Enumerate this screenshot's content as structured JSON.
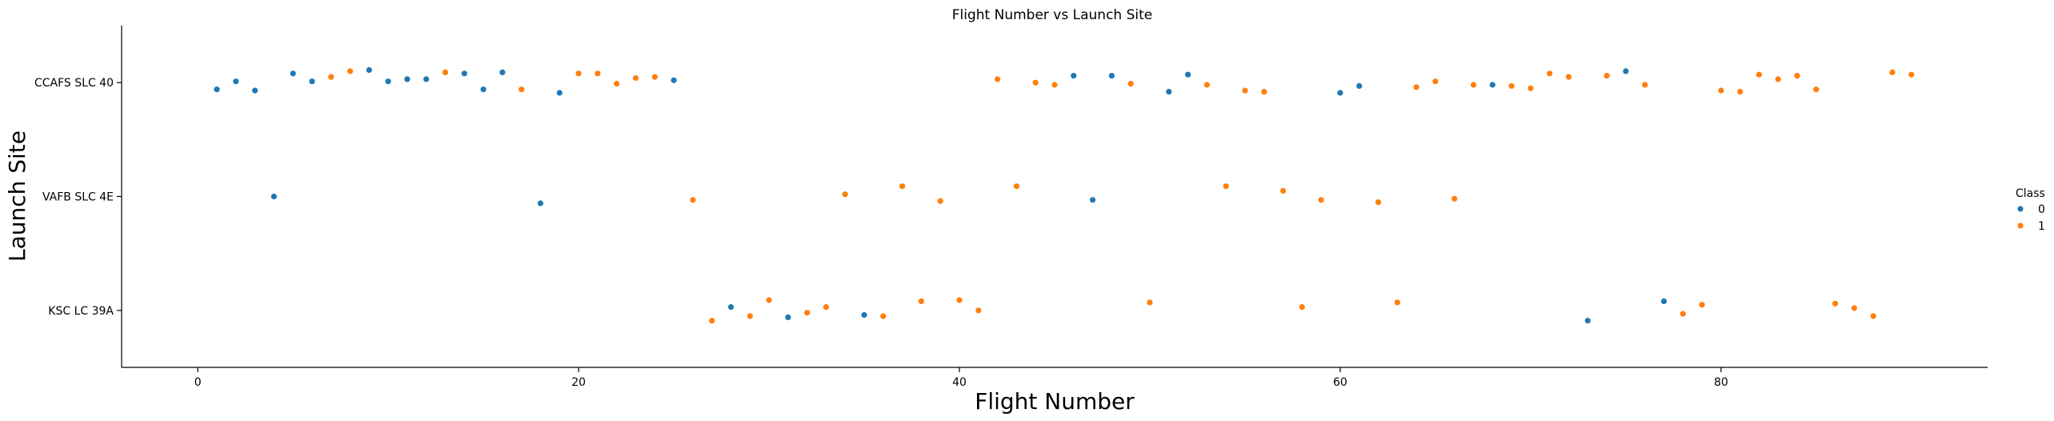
{
  "chart_data": {
    "type": "scatter",
    "title": "Flight Number vs Launch Site",
    "xlabel": "Flight Number",
    "ylabel": "Launch Site",
    "xlim": [
      -4,
      94
    ],
    "x_ticks": [
      0,
      20,
      40,
      60,
      80
    ],
    "categories": [
      "CCAFS SLC 40",
      "VAFB SLC 4E",
      "KSC LC 39A"
    ],
    "grid": false,
    "legend": {
      "title": "Class",
      "position": "right"
    },
    "series": [
      {
        "name": "0",
        "color": "#1f77b4",
        "points": [
          {
            "x": 1,
            "y": "CCAFS SLC 40",
            "jitter": 0.06
          },
          {
            "x": 2,
            "y": "CCAFS SLC 40",
            "jitter": -0.01
          },
          {
            "x": 3,
            "y": "CCAFS SLC 40",
            "jitter": 0.07
          },
          {
            "x": 4,
            "y": "VAFB SLC 4E",
            "jitter": 0.0
          },
          {
            "x": 5,
            "y": "CCAFS SLC 40",
            "jitter": -0.08
          },
          {
            "x": 6,
            "y": "CCAFS SLC 40",
            "jitter": -0.01
          },
          {
            "x": 9,
            "y": "CCAFS SLC 40",
            "jitter": -0.11
          },
          {
            "x": 10,
            "y": "CCAFS SLC 40",
            "jitter": -0.01
          },
          {
            "x": 11,
            "y": "CCAFS SLC 40",
            "jitter": -0.03
          },
          {
            "x": 12,
            "y": "CCAFS SLC 40",
            "jitter": -0.03
          },
          {
            "x": 14,
            "y": "CCAFS SLC 40",
            "jitter": -0.08
          },
          {
            "x": 15,
            "y": "CCAFS SLC 40",
            "jitter": 0.06
          },
          {
            "x": 16,
            "y": "CCAFS SLC 40",
            "jitter": -0.09
          },
          {
            "x": 18,
            "y": "VAFB SLC 4E",
            "jitter": 0.06
          },
          {
            "x": 19,
            "y": "CCAFS SLC 40",
            "jitter": 0.09
          },
          {
            "x": 25,
            "y": "CCAFS SLC 40",
            "jitter": -0.02
          },
          {
            "x": 28,
            "y": "KSC LC 39A",
            "jitter": -0.03
          },
          {
            "x": 31,
            "y": "KSC LC 39A",
            "jitter": 0.06
          },
          {
            "x": 35,
            "y": "KSC LC 39A",
            "jitter": 0.04
          },
          {
            "x": 46,
            "y": "CCAFS SLC 40",
            "jitter": -0.06
          },
          {
            "x": 47,
            "y": "VAFB SLC 4E",
            "jitter": 0.03
          },
          {
            "x": 48,
            "y": "CCAFS SLC 40",
            "jitter": -0.06
          },
          {
            "x": 51,
            "y": "CCAFS SLC 40",
            "jitter": 0.08
          },
          {
            "x": 52,
            "y": "CCAFS SLC 40",
            "jitter": -0.07
          },
          {
            "x": 60,
            "y": "CCAFS SLC 40",
            "jitter": 0.09
          },
          {
            "x": 61,
            "y": "CCAFS SLC 40",
            "jitter": 0.03
          },
          {
            "x": 68,
            "y": "CCAFS SLC 40",
            "jitter": 0.02
          },
          {
            "x": 73,
            "y": "KSC LC 39A",
            "jitter": 0.09
          },
          {
            "x": 75,
            "y": "CCAFS SLC 40",
            "jitter": -0.1
          },
          {
            "x": 77,
            "y": "KSC LC 39A",
            "jitter": -0.08
          }
        ]
      },
      {
        "name": "1",
        "color": "#ff7f0e",
        "points": [
          {
            "x": 7,
            "y": "CCAFS SLC 40",
            "jitter": -0.05
          },
          {
            "x": 8,
            "y": "CCAFS SLC 40",
            "jitter": -0.1
          },
          {
            "x": 13,
            "y": "CCAFS SLC 40",
            "jitter": -0.09
          },
          {
            "x": 17,
            "y": "CCAFS SLC 40",
            "jitter": 0.06
          },
          {
            "x": 20,
            "y": "CCAFS SLC 40",
            "jitter": -0.08
          },
          {
            "x": 21,
            "y": "CCAFS SLC 40",
            "jitter": -0.08
          },
          {
            "x": 22,
            "y": "CCAFS SLC 40",
            "jitter": 0.01
          },
          {
            "x": 23,
            "y": "CCAFS SLC 40",
            "jitter": -0.04
          },
          {
            "x": 24,
            "y": "CCAFS SLC 40",
            "jitter": -0.05
          },
          {
            "x": 26,
            "y": "VAFB SLC 4E",
            "jitter": 0.03
          },
          {
            "x": 27,
            "y": "KSC LC 39A",
            "jitter": 0.09
          },
          {
            "x": 29,
            "y": "KSC LC 39A",
            "jitter": 0.05
          },
          {
            "x": 30,
            "y": "KSC LC 39A",
            "jitter": -0.09
          },
          {
            "x": 32,
            "y": "KSC LC 39A",
            "jitter": 0.02
          },
          {
            "x": 33,
            "y": "KSC LC 39A",
            "jitter": -0.03
          },
          {
            "x": 34,
            "y": "VAFB SLC 4E",
            "jitter": -0.02
          },
          {
            "x": 36,
            "y": "KSC LC 39A",
            "jitter": 0.05
          },
          {
            "x": 37,
            "y": "VAFB SLC 4E",
            "jitter": -0.09
          },
          {
            "x": 38,
            "y": "KSC LC 39A",
            "jitter": -0.08
          },
          {
            "x": 39,
            "y": "VAFB SLC 4E",
            "jitter": 0.04
          },
          {
            "x": 40,
            "y": "KSC LC 39A",
            "jitter": -0.09
          },
          {
            "x": 41,
            "y": "KSC LC 39A",
            "jitter": 0.0
          },
          {
            "x": 42,
            "y": "CCAFS SLC 40",
            "jitter": -0.03
          },
          {
            "x": 43,
            "y": "VAFB SLC 4E",
            "jitter": -0.09
          },
          {
            "x": 44,
            "y": "CCAFS SLC 40",
            "jitter": 0.0
          },
          {
            "x": 45,
            "y": "CCAFS SLC 40",
            "jitter": 0.02
          },
          {
            "x": 49,
            "y": "CCAFS SLC 40",
            "jitter": 0.01
          },
          {
            "x": 50,
            "y": "KSC LC 39A",
            "jitter": -0.07
          },
          {
            "x": 53,
            "y": "CCAFS SLC 40",
            "jitter": 0.02
          },
          {
            "x": 54,
            "y": "VAFB SLC 4E",
            "jitter": -0.09
          },
          {
            "x": 55,
            "y": "CCAFS SLC 40",
            "jitter": 0.07
          },
          {
            "x": 56,
            "y": "CCAFS SLC 40",
            "jitter": 0.08
          },
          {
            "x": 57,
            "y": "VAFB SLC 4E",
            "jitter": -0.05
          },
          {
            "x": 58,
            "y": "KSC LC 39A",
            "jitter": -0.03
          },
          {
            "x": 59,
            "y": "VAFB SLC 4E",
            "jitter": 0.03
          },
          {
            "x": 62,
            "y": "VAFB SLC 4E",
            "jitter": 0.05
          },
          {
            "x": 63,
            "y": "KSC LC 39A",
            "jitter": -0.07
          },
          {
            "x": 64,
            "y": "CCAFS SLC 40",
            "jitter": 0.04
          },
          {
            "x": 65,
            "y": "CCAFS SLC 40",
            "jitter": -0.01
          },
          {
            "x": 66,
            "y": "VAFB SLC 4E",
            "jitter": 0.02
          },
          {
            "x": 67,
            "y": "CCAFS SLC 40",
            "jitter": 0.02
          },
          {
            "x": 69,
            "y": "CCAFS SLC 40",
            "jitter": 0.03
          },
          {
            "x": 70,
            "y": "CCAFS SLC 40",
            "jitter": 0.05
          },
          {
            "x": 71,
            "y": "CCAFS SLC 40",
            "jitter": -0.08
          },
          {
            "x": 72,
            "y": "CCAFS SLC 40",
            "jitter": -0.05
          },
          {
            "x": 74,
            "y": "CCAFS SLC 40",
            "jitter": -0.06
          },
          {
            "x": 76,
            "y": "CCAFS SLC 40",
            "jitter": 0.02
          },
          {
            "x": 78,
            "y": "KSC LC 39A",
            "jitter": 0.03
          },
          {
            "x": 79,
            "y": "KSC LC 39A",
            "jitter": -0.05
          },
          {
            "x": 80,
            "y": "CCAFS SLC 40",
            "jitter": 0.07
          },
          {
            "x": 81,
            "y": "CCAFS SLC 40",
            "jitter": 0.08
          },
          {
            "x": 82,
            "y": "CCAFS SLC 40",
            "jitter": -0.07
          },
          {
            "x": 83,
            "y": "CCAFS SLC 40",
            "jitter": -0.03
          },
          {
            "x": 84,
            "y": "CCAFS SLC 40",
            "jitter": -0.06
          },
          {
            "x": 85,
            "y": "CCAFS SLC 40",
            "jitter": 0.06
          },
          {
            "x": 86,
            "y": "KSC LC 39A",
            "jitter": -0.06
          },
          {
            "x": 87,
            "y": "KSC LC 39A",
            "jitter": -0.02
          },
          {
            "x": 88,
            "y": "KSC LC 39A",
            "jitter": 0.05
          },
          {
            "x": 89,
            "y": "CCAFS SLC 40",
            "jitter": -0.09
          },
          {
            "x": 90,
            "y": "CCAFS SLC 40",
            "jitter": -0.07
          }
        ]
      }
    ]
  }
}
